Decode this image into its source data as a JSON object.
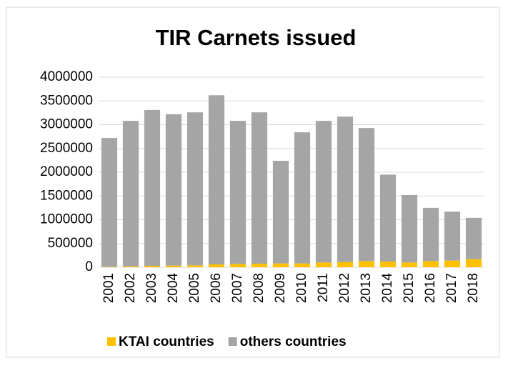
{
  "chart_data": {
    "type": "stacked_bar",
    "title": "TIR Carnets issued",
    "categories": [
      "2001",
      "2002",
      "2003",
      "2004",
      "2005",
      "2006",
      "2007",
      "2008",
      "2009",
      "2010",
      "2011",
      "2012",
      "2013",
      "2014",
      "2015",
      "2016",
      "2017",
      "2018"
    ],
    "series": [
      {
        "name": "KTAI countries",
        "color": "#ffc000",
        "values": [
          10000,
          20000,
          30000,
          35000,
          40000,
          60000,
          70000,
          75000,
          80000,
          80000,
          100000,
          110000,
          130000,
          120000,
          100000,
          130000,
          140000,
          170000
        ]
      },
      {
        "name": "others countries",
        "color": "#a5a5a5",
        "values": [
          2710000,
          3060000,
          3280000,
          3185000,
          3220000,
          3560000,
          3010000,
          3185000,
          2160000,
          2760000,
          2980000,
          3060000,
          2800000,
          1830000,
          1420000,
          1120000,
          1030000,
          870000
        ]
      }
    ],
    "ylim": [
      0,
      4000000
    ],
    "yticks": [
      0,
      500000,
      1000000,
      1500000,
      2000000,
      2500000,
      3000000,
      3500000,
      4000000
    ],
    "grid": true,
    "legend": "bottom"
  }
}
